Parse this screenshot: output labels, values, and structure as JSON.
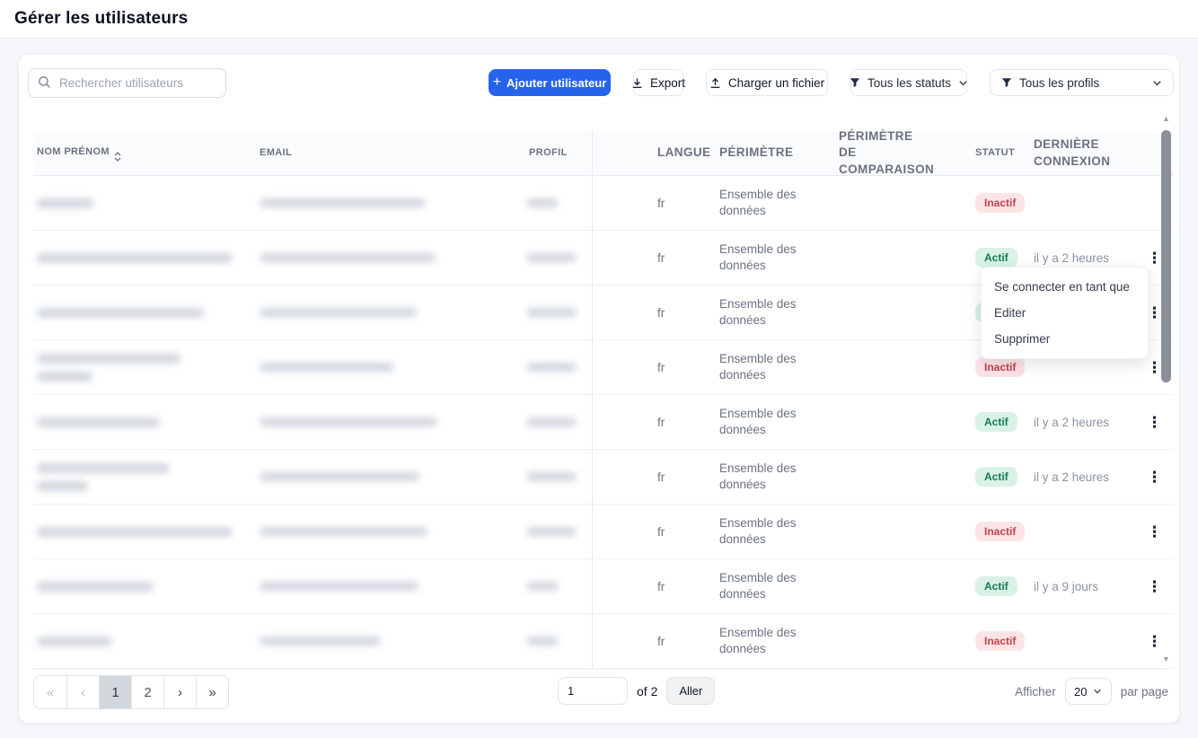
{
  "page": {
    "title": "Gérer les utilisateurs"
  },
  "colors": {
    "accent": "#2563eb",
    "badge_active_bg": "#d9f2e5",
    "badge_active_text": "#157a55",
    "badge_inactive_bg": "#fbe4e6",
    "badge_inactive_text": "#c2414b"
  },
  "icons": {
    "kebab": "⋮",
    "scroll_up": "▲",
    "scroll_down": "▼"
  },
  "toolbar": {
    "search": {
      "placeholder": "Rechercher utilisateurs",
      "value": ""
    },
    "add_user_label": "Ajouter utilisateur",
    "add_user_plus": "+",
    "export_label": "Export",
    "upload_label": "Charger un fichier",
    "status_filter_label": "Tous les statuts",
    "profile_filter_label": "Tous les profils"
  },
  "table": {
    "headers": [
      {
        "label": "NOM PRÉNOM",
        "sortable": true
      },
      {
        "label": "EMAIL"
      },
      {
        "label": "PROFIL"
      },
      {
        "label": "LANGUE"
      },
      {
        "label": "PÉRIMÈTRE"
      },
      {
        "label": "PÉRIMÈTRE DE COMPARAISON"
      },
      {
        "label": "STATUT"
      },
      {
        "label": "DERNIÈRE CONNEXION"
      }
    ],
    "rows": [
      {
        "langue": "fr",
        "perimetre": "Ensemble des données",
        "perimetre_comparaison": "",
        "statut": "Inactif",
        "derniere_connexion": "",
        "has_menu": false,
        "redaction": {
          "name": [
            64
          ],
          "email": 185,
          "profil": 36
        }
      },
      {
        "langue": "fr",
        "perimetre": "Ensemble des données",
        "perimetre_comparaison": "",
        "statut": "Actif",
        "derniere_connexion": "il y a 2 heures",
        "has_menu": true,
        "redaction": {
          "name": [
            218
          ],
          "email": 196,
          "profil": 56
        }
      },
      {
        "langue": "fr",
        "perimetre": "Ensemble des données",
        "perimetre_comparaison": "",
        "statut": "Actif",
        "derniere_connexion": "",
        "has_menu": true,
        "redaction": {
          "name": [
            186
          ],
          "email": 176,
          "profil": 56
        }
      },
      {
        "langue": "fr",
        "perimetre": "Ensemble des données",
        "perimetre_comparaison": "",
        "statut": "Inactif",
        "derniere_connexion": "",
        "has_menu": true,
        "redaction": {
          "name": [
            160,
            62
          ],
          "email": 150,
          "profil": 56
        }
      },
      {
        "langue": "fr",
        "perimetre": "Ensemble des données",
        "perimetre_comparaison": "",
        "statut": "Actif",
        "derniere_connexion": "il y a 2 heures",
        "has_menu": true,
        "redaction": {
          "name": [
            137
          ],
          "email": 198,
          "profil": 56
        }
      },
      {
        "langue": "fr",
        "perimetre": "Ensemble des données",
        "perimetre_comparaison": "",
        "statut": "Actif",
        "derniere_connexion": "il y a 2 heures",
        "has_menu": true,
        "redaction": {
          "name": [
            148,
            57
          ],
          "email": 178,
          "profil": 56
        }
      },
      {
        "langue": "fr",
        "perimetre": "Ensemble des données",
        "perimetre_comparaison": "",
        "statut": "Inactif",
        "derniere_connexion": "",
        "has_menu": true,
        "redaction": {
          "name": [
            218
          ],
          "email": 187,
          "profil": 56
        }
      },
      {
        "langue": "fr",
        "perimetre": "Ensemble des données",
        "perimetre_comparaison": "",
        "statut": "Actif",
        "derniere_connexion": "il y a 9 jours",
        "has_menu": true,
        "redaction": {
          "name": [
            130
          ],
          "email": 177,
          "profil": 36
        }
      },
      {
        "langue": "fr",
        "perimetre": "Ensemble des données",
        "perimetre_comparaison": "",
        "statut": "Inactif",
        "derniere_connexion": "",
        "has_menu": true,
        "redaction": {
          "name": [
            84
          ],
          "email": 135,
          "profil": 36
        }
      }
    ]
  },
  "context_menu": {
    "items": [
      "Se connecter en tant que",
      "Editer",
      "Supprimer"
    ]
  },
  "pagination": {
    "first_icon": "«",
    "prev_icon": "‹",
    "next_icon": "›",
    "last_icon": "»",
    "page_1": "1",
    "page_2": "2",
    "current_page": "1",
    "page_input_value": "1",
    "of_label": "of 2",
    "go_label": "Aller",
    "show_label": "Afficher",
    "per_page_value": "20",
    "per_page_label": "par page"
  }
}
